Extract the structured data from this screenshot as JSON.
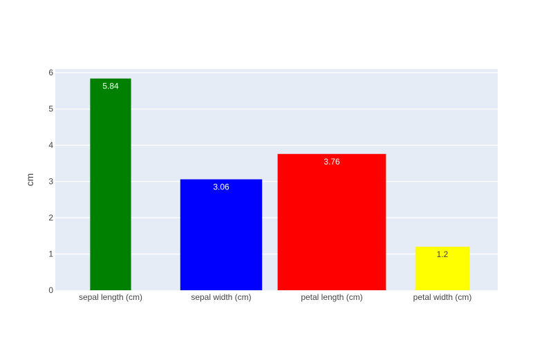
{
  "chart_data": {
    "type": "bar",
    "title": "",
    "xlabel": "",
    "ylabel": "cm",
    "ylim": [
      0,
      6.1
    ],
    "yticks": [
      0,
      1,
      2,
      3,
      4,
      5,
      6
    ],
    "grid": true,
    "legend": "none",
    "background_color": "#e5ecf6",
    "categories": [
      "sepal length (cm)",
      "sepal width (cm)",
      "petal length (cm)",
      "petal width (cm)"
    ],
    "values": [
      5.84,
      3.06,
      3.76,
      1.2
    ],
    "value_labels": [
      "5.84",
      "3.06",
      "3.76",
      "1.2"
    ],
    "bar_colors": [
      "#008000",
      "#0000ff",
      "#ff0000",
      "#ffff00"
    ],
    "label_colors": [
      "#ffffff",
      "#ffffff",
      "#ffffff",
      "#444444"
    ],
    "bar_width_fraction": [
      0.37,
      0.74,
      0.98,
      0.49
    ]
  }
}
